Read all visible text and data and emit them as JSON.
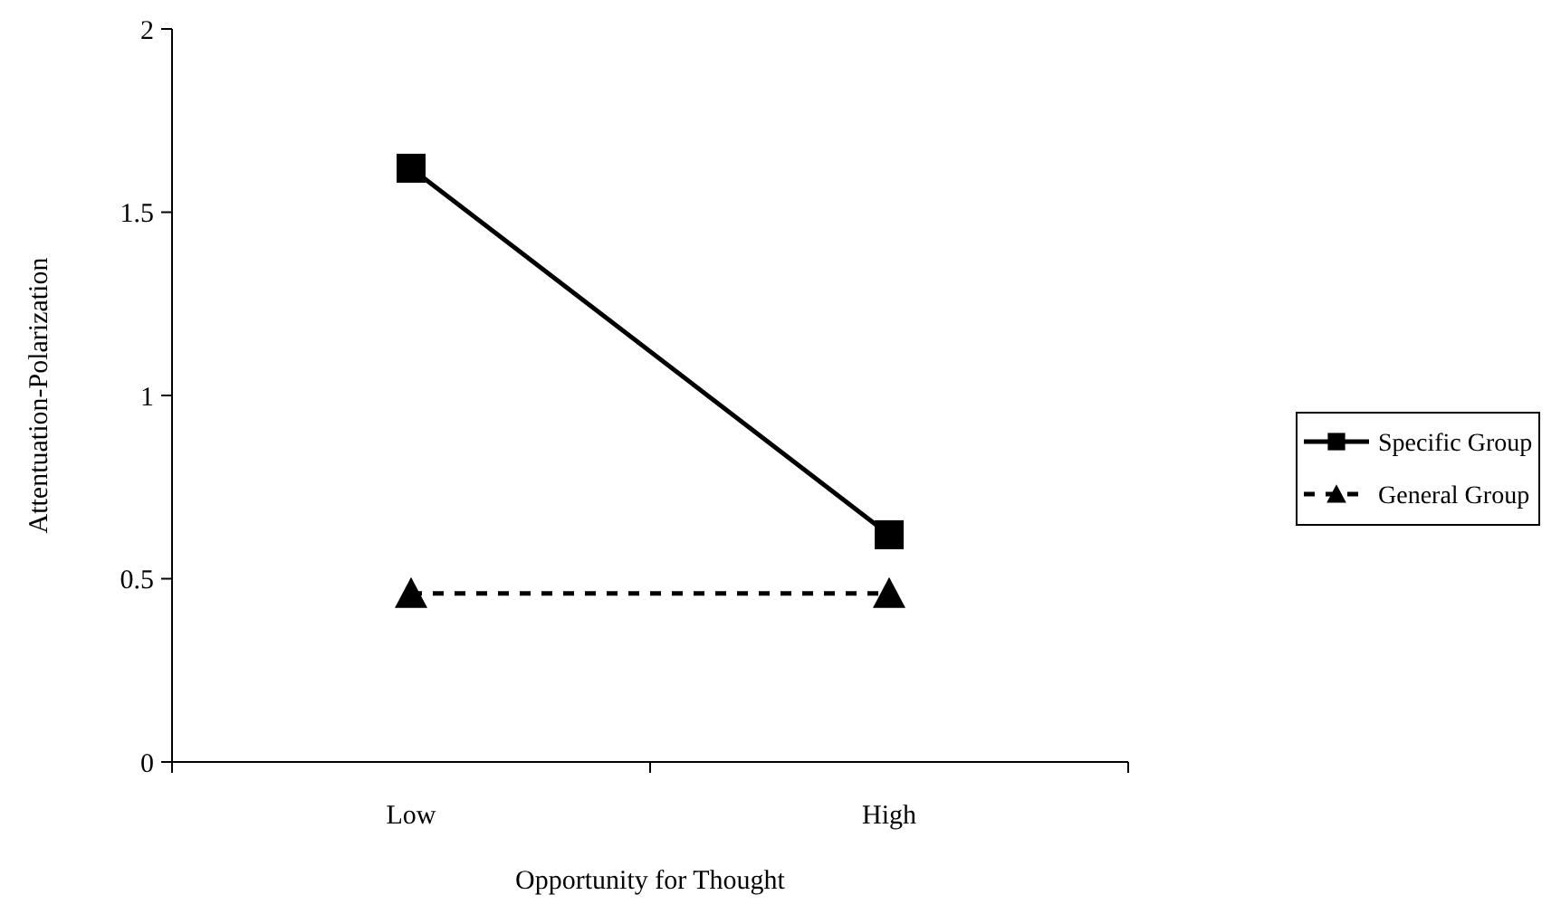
{
  "chart_data": {
    "type": "line",
    "xlabel": "Opportunity for Thought",
    "ylabel": "Attentuation-Polarization",
    "categories": [
      "Low",
      "High"
    ],
    "series": [
      {
        "name": "Specific Group",
        "color": "#000000",
        "values": [
          1.62,
          0.62
        ],
        "marker": "square",
        "line_style": "solid"
      },
      {
        "name": "General Group",
        "color": "#000000",
        "values": [
          0.46,
          0.46
        ],
        "marker": "triangle",
        "line_style": "dashed"
      }
    ],
    "ylim": [
      0,
      2
    ],
    "yticks": [
      0,
      0.5,
      1,
      1.5,
      2
    ],
    "grid": false,
    "legend": "right"
  }
}
